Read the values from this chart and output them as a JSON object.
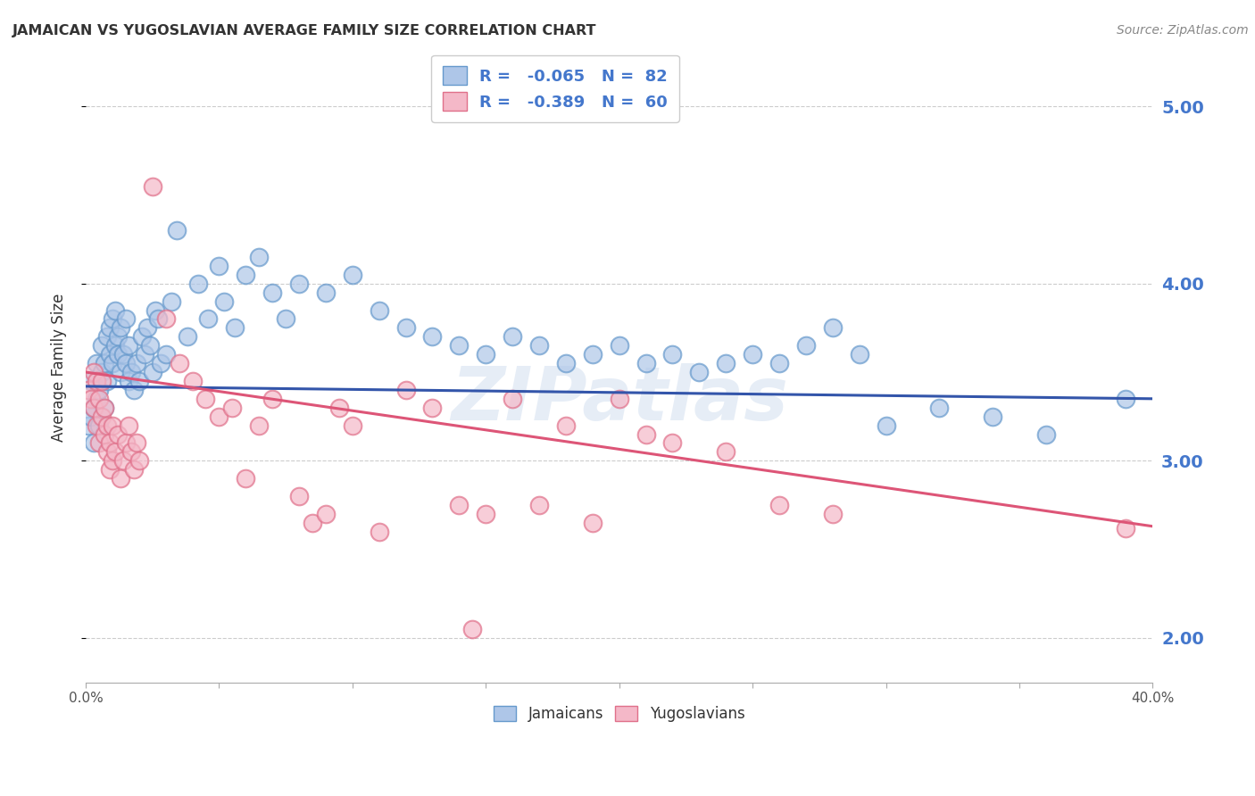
{
  "title": "JAMAICAN VS YUGOSLAVIAN AVERAGE FAMILY SIZE CORRELATION CHART",
  "source": "Source: ZipAtlas.com",
  "ylabel": "Average Family Size",
  "yticks": [
    2.0,
    3.0,
    4.0,
    5.0
  ],
  "xlim": [
    0.0,
    0.4
  ],
  "ylim": [
    1.75,
    5.3
  ],
  "jamaican_line": {
    "x0": 0.0,
    "y0": 3.42,
    "x1": 0.4,
    "y1": 3.35
  },
  "yugoslavian_line": {
    "x0": 0.0,
    "y0": 3.5,
    "x1": 0.4,
    "y1": 2.63
  },
  "jamaican_scatter": [
    [
      0.001,
      3.2
    ],
    [
      0.002,
      3.25
    ],
    [
      0.002,
      3.45
    ],
    [
      0.003,
      3.1
    ],
    [
      0.003,
      3.3
    ],
    [
      0.004,
      3.35
    ],
    [
      0.004,
      3.55
    ],
    [
      0.005,
      3.2
    ],
    [
      0.005,
      3.4
    ],
    [
      0.006,
      3.5
    ],
    [
      0.006,
      3.65
    ],
    [
      0.007,
      3.3
    ],
    [
      0.007,
      3.55
    ],
    [
      0.008,
      3.45
    ],
    [
      0.008,
      3.7
    ],
    [
      0.009,
      3.6
    ],
    [
      0.009,
      3.75
    ],
    [
      0.01,
      3.55
    ],
    [
      0.01,
      3.8
    ],
    [
      0.011,
      3.65
    ],
    [
      0.011,
      3.85
    ],
    [
      0.012,
      3.7
    ],
    [
      0.012,
      3.6
    ],
    [
      0.013,
      3.75
    ],
    [
      0.013,
      3.5
    ],
    [
      0.014,
      3.6
    ],
    [
      0.015,
      3.8
    ],
    [
      0.015,
      3.55
    ],
    [
      0.016,
      3.65
    ],
    [
      0.016,
      3.45
    ],
    [
      0.017,
      3.5
    ],
    [
      0.018,
      3.4
    ],
    [
      0.019,
      3.55
    ],
    [
      0.02,
      3.45
    ],
    [
      0.021,
      3.7
    ],
    [
      0.022,
      3.6
    ],
    [
      0.023,
      3.75
    ],
    [
      0.024,
      3.65
    ],
    [
      0.025,
      3.5
    ],
    [
      0.026,
      3.85
    ],
    [
      0.027,
      3.8
    ],
    [
      0.028,
      3.55
    ],
    [
      0.03,
      3.6
    ],
    [
      0.032,
      3.9
    ],
    [
      0.034,
      4.3
    ],
    [
      0.038,
      3.7
    ],
    [
      0.042,
      4.0
    ],
    [
      0.046,
      3.8
    ],
    [
      0.05,
      4.1
    ],
    [
      0.052,
      3.9
    ],
    [
      0.056,
      3.75
    ],
    [
      0.06,
      4.05
    ],
    [
      0.065,
      4.15
    ],
    [
      0.07,
      3.95
    ],
    [
      0.075,
      3.8
    ],
    [
      0.08,
      4.0
    ],
    [
      0.09,
      3.95
    ],
    [
      0.1,
      4.05
    ],
    [
      0.11,
      3.85
    ],
    [
      0.12,
      3.75
    ],
    [
      0.13,
      3.7
    ],
    [
      0.14,
      3.65
    ],
    [
      0.15,
      3.6
    ],
    [
      0.16,
      3.7
    ],
    [
      0.17,
      3.65
    ],
    [
      0.18,
      3.55
    ],
    [
      0.19,
      3.6
    ],
    [
      0.2,
      3.65
    ],
    [
      0.21,
      3.55
    ],
    [
      0.22,
      3.6
    ],
    [
      0.23,
      3.5
    ],
    [
      0.24,
      3.55
    ],
    [
      0.25,
      3.6
    ],
    [
      0.26,
      3.55
    ],
    [
      0.27,
      3.65
    ],
    [
      0.28,
      3.75
    ],
    [
      0.29,
      3.6
    ],
    [
      0.3,
      3.2
    ],
    [
      0.32,
      3.3
    ],
    [
      0.34,
      3.25
    ],
    [
      0.36,
      3.15
    ],
    [
      0.39,
      3.35
    ]
  ],
  "yugoslavian_scatter": [
    [
      0.001,
      3.4
    ],
    [
      0.002,
      3.35
    ],
    [
      0.003,
      3.3
    ],
    [
      0.003,
      3.5
    ],
    [
      0.004,
      3.45
    ],
    [
      0.004,
      3.2
    ],
    [
      0.005,
      3.35
    ],
    [
      0.005,
      3.1
    ],
    [
      0.006,
      3.25
    ],
    [
      0.006,
      3.45
    ],
    [
      0.007,
      3.3
    ],
    [
      0.007,
      3.15
    ],
    [
      0.008,
      3.2
    ],
    [
      0.008,
      3.05
    ],
    [
      0.009,
      3.1
    ],
    [
      0.009,
      2.95
    ],
    [
      0.01,
      3.0
    ],
    [
      0.01,
      3.2
    ],
    [
      0.011,
      3.05
    ],
    [
      0.012,
      3.15
    ],
    [
      0.013,
      2.9
    ],
    [
      0.014,
      3.0
    ],
    [
      0.015,
      3.1
    ],
    [
      0.016,
      3.2
    ],
    [
      0.017,
      3.05
    ],
    [
      0.018,
      2.95
    ],
    [
      0.019,
      3.1
    ],
    [
      0.02,
      3.0
    ],
    [
      0.025,
      4.55
    ],
    [
      0.03,
      3.8
    ],
    [
      0.035,
      3.55
    ],
    [
      0.04,
      3.45
    ],
    [
      0.045,
      3.35
    ],
    [
      0.05,
      3.25
    ],
    [
      0.055,
      3.3
    ],
    [
      0.06,
      2.9
    ],
    [
      0.065,
      3.2
    ],
    [
      0.07,
      3.35
    ],
    [
      0.08,
      2.8
    ],
    [
      0.085,
      2.65
    ],
    [
      0.09,
      2.7
    ],
    [
      0.095,
      3.3
    ],
    [
      0.1,
      3.2
    ],
    [
      0.11,
      2.6
    ],
    [
      0.12,
      3.4
    ],
    [
      0.13,
      3.3
    ],
    [
      0.14,
      2.75
    ],
    [
      0.145,
      2.05
    ],
    [
      0.15,
      2.7
    ],
    [
      0.16,
      3.35
    ],
    [
      0.17,
      2.75
    ],
    [
      0.18,
      3.2
    ],
    [
      0.19,
      2.65
    ],
    [
      0.2,
      3.35
    ],
    [
      0.21,
      3.15
    ],
    [
      0.22,
      3.1
    ],
    [
      0.24,
      3.05
    ],
    [
      0.26,
      2.75
    ],
    [
      0.28,
      2.7
    ],
    [
      0.39,
      2.62
    ]
  ],
  "watermark": "ZIPatlas",
  "background_color": "#ffffff",
  "grid_color": "#cccccc",
  "jamaican_dot_facecolor": "#aec6e8",
  "jamaican_dot_edgecolor": "#6699cc",
  "yugoslavian_dot_facecolor": "#f4b8c8",
  "yugoslavian_dot_edgecolor": "#e0708a",
  "jamaican_line_color": "#3355aa",
  "yugoslavian_line_color": "#dd5577",
  "right_axis_color": "#4477cc",
  "title_color": "#333333",
  "source_color": "#888888"
}
